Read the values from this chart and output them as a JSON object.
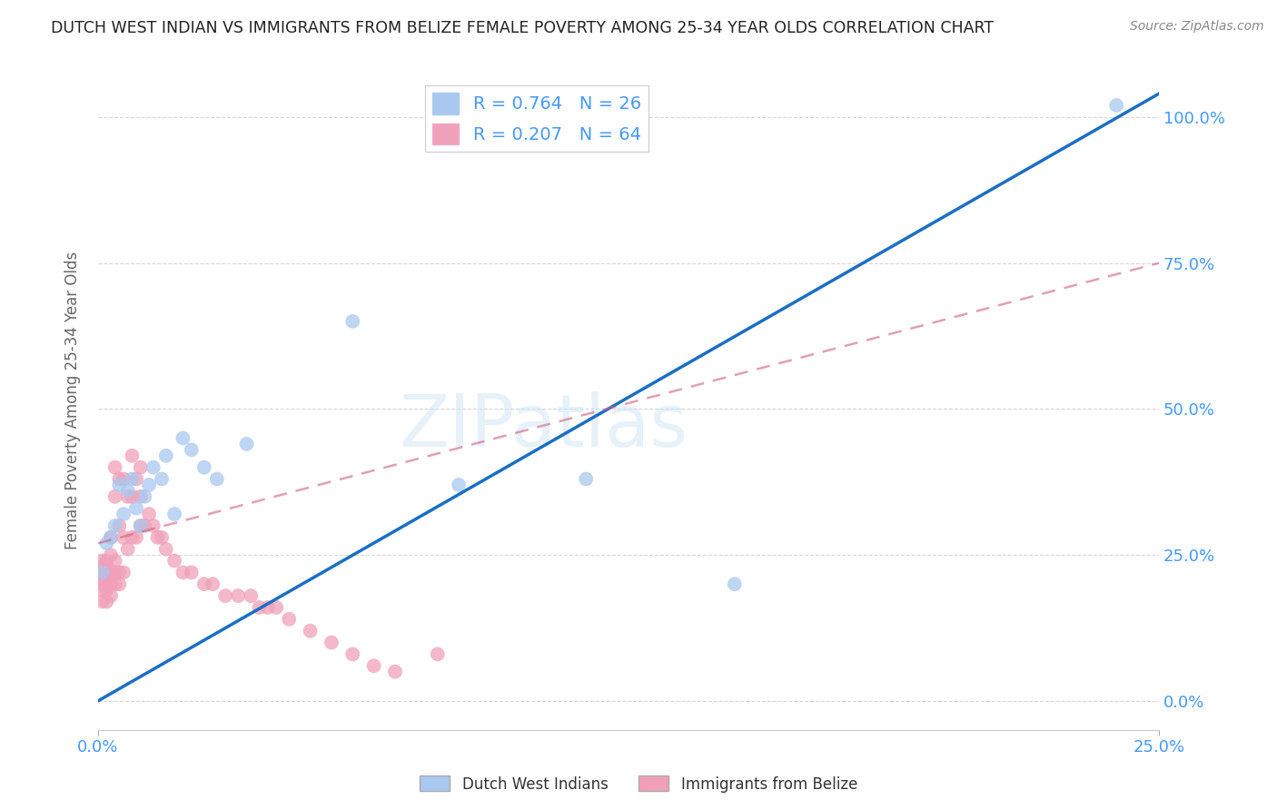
{
  "title": "DUTCH WEST INDIAN VS IMMIGRANTS FROM BELIZE FEMALE POVERTY AMONG 25-34 YEAR OLDS CORRELATION CHART",
  "source": "Source: ZipAtlas.com",
  "ylabel": "Female Poverty Among 25-34 Year Olds",
  "watermark": "ZIPatlas",
  "blue_R": 0.764,
  "blue_N": 26,
  "pink_R": 0.207,
  "pink_N": 64,
  "xlim": [
    0.0,
    0.25
  ],
  "ylim": [
    -0.05,
    1.08
  ],
  "xtick_positions": [
    0.0,
    0.25
  ],
  "xtick_labels": [
    "0.0%",
    "25.0%"
  ],
  "ytick_positions": [
    0.0,
    0.25,
    0.5,
    0.75,
    1.0
  ],
  "ytick_labels": [
    "0.0%",
    "25.0%",
    "50.0%",
    "75.0%",
    "100.0%"
  ],
  "blue_color": "#a8c8f0",
  "pink_color": "#f0a0b8",
  "blue_line_color": "#1a6fc4",
  "pink_line_color": "#d06080",
  "label_color": "#4499ff",
  "legend_label_blue": "Dutch West Indians",
  "legend_label_pink": "Immigrants from Belize",
  "blue_points_x": [
    0.001,
    0.002,
    0.003,
    0.004,
    0.005,
    0.006,
    0.007,
    0.008,
    0.009,
    0.01,
    0.011,
    0.012,
    0.013,
    0.015,
    0.016,
    0.018,
    0.02,
    0.022,
    0.025,
    0.028,
    0.035,
    0.06,
    0.085,
    0.115,
    0.15,
    0.24
  ],
  "blue_points_y": [
    0.22,
    0.27,
    0.28,
    0.3,
    0.37,
    0.32,
    0.36,
    0.38,
    0.33,
    0.3,
    0.35,
    0.37,
    0.4,
    0.38,
    0.42,
    0.32,
    0.45,
    0.43,
    0.4,
    0.38,
    0.44,
    0.65,
    0.37,
    0.38,
    0.2,
    1.02
  ],
  "pink_points_x": [
    0.001,
    0.001,
    0.001,
    0.001,
    0.001,
    0.001,
    0.001,
    0.002,
    0.002,
    0.002,
    0.002,
    0.002,
    0.002,
    0.003,
    0.003,
    0.003,
    0.003,
    0.003,
    0.004,
    0.004,
    0.004,
    0.004,
    0.004,
    0.005,
    0.005,
    0.005,
    0.005,
    0.006,
    0.006,
    0.006,
    0.007,
    0.007,
    0.008,
    0.008,
    0.008,
    0.009,
    0.009,
    0.01,
    0.01,
    0.01,
    0.011,
    0.012,
    0.013,
    0.014,
    0.015,
    0.016,
    0.018,
    0.02,
    0.022,
    0.025,
    0.027,
    0.03,
    0.033,
    0.036,
    0.038,
    0.04,
    0.042,
    0.045,
    0.05,
    0.055,
    0.06,
    0.065,
    0.07,
    0.08
  ],
  "pink_points_y": [
    0.17,
    0.19,
    0.2,
    0.21,
    0.22,
    0.23,
    0.24,
    0.17,
    0.19,
    0.21,
    0.22,
    0.23,
    0.24,
    0.18,
    0.2,
    0.22,
    0.25,
    0.28,
    0.2,
    0.22,
    0.24,
    0.35,
    0.4,
    0.2,
    0.22,
    0.3,
    0.38,
    0.22,
    0.28,
    0.38,
    0.26,
    0.35,
    0.28,
    0.35,
    0.42,
    0.28,
    0.38,
    0.3,
    0.35,
    0.4,
    0.3,
    0.32,
    0.3,
    0.28,
    0.28,
    0.26,
    0.24,
    0.22,
    0.22,
    0.2,
    0.2,
    0.18,
    0.18,
    0.18,
    0.16,
    0.16,
    0.16,
    0.14,
    0.12,
    0.1,
    0.08,
    0.06,
    0.05,
    0.08
  ],
  "blue_line_x0": 0.0,
  "blue_line_y0": 0.0,
  "blue_line_x1": 0.25,
  "blue_line_y1": 1.04,
  "pink_line_x0": 0.0,
  "pink_line_y0": 0.27,
  "pink_line_x1": 0.25,
  "pink_line_y1": 0.75
}
